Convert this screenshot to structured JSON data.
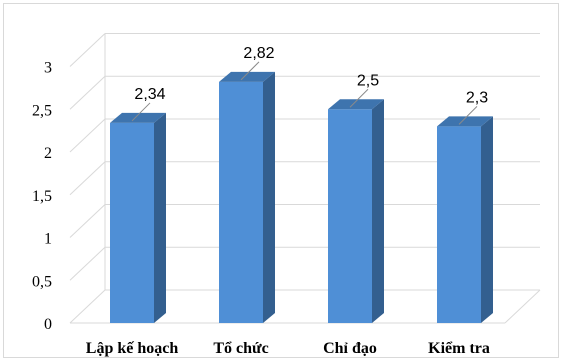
{
  "chart_data": {
    "type": "bar",
    "categories": [
      "Lập kế hoạch",
      "Tổ chức",
      "Chỉ đạo",
      "Kiểm tra"
    ],
    "values": [
      2.34,
      2.82,
      2.5,
      2.3
    ],
    "value_labels": [
      "2,34",
      "2,82",
      "2,5",
      "2,3"
    ],
    "y_ticks": [
      "0",
      "0,5",
      "1",
      "1,5",
      "2",
      "2,5",
      "3"
    ],
    "y_tick_values": [
      0,
      0.5,
      1,
      1.5,
      2,
      2.5,
      3
    ],
    "ylim": [
      0,
      3.25
    ],
    "grid": true,
    "style": "3d-column",
    "colors": {
      "bar_front": "#4f8fd6",
      "bar_side": "#335f8f",
      "bar_top": "#3e74ae",
      "grid": "#d9d9d9",
      "leader": "#8a8a8a"
    }
  }
}
